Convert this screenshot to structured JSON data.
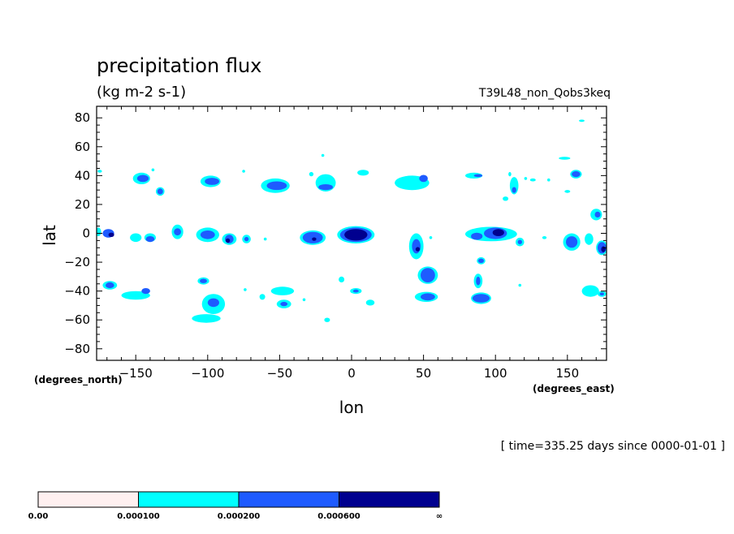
{
  "chart_data": {
    "type": "heatmap",
    "title": "precipitation flux",
    "units": "(kg m-2 s-1)",
    "run_name": "T39L48_non_Qobs3keq",
    "xlabel": "lon",
    "ylabel": "lat",
    "x_units": "(degrees_east)",
    "y_units": "(degrees_north)",
    "time_note": "[ time=335.25 days since 0000-01-01 ]",
    "xlim": [
      -177.19,
      177.19
    ],
    "ylim": [
      -88,
      88
    ],
    "x_ticks": [
      -150,
      -100,
      -50,
      0,
      50,
      100,
      150
    ],
    "x_tick_labels": [
      "−150",
      "−100",
      "−50",
      "0",
      "50",
      "100",
      "150"
    ],
    "y_ticks": [
      -80,
      -60,
      -40,
      -20,
      0,
      20,
      40,
      60,
      80
    ],
    "y_tick_labels": [
      "−80",
      "−60",
      "−40",
      "−20",
      "0",
      "20",
      "40",
      "60",
      "80"
    ],
    "grid": false,
    "levels": [
      0.0,
      0.0001,
      0.0002,
      0.0006
    ],
    "colorbar": {
      "labels": [
        "0.00",
        "0.000100",
        "0.000200",
        "0.000600",
        "∞"
      ],
      "colors": [
        "#fff0f0",
        "#00ffff",
        "#1e5bff",
        "#00008f"
      ]
    },
    "cells": [
      {
        "lon": -169,
        "lat": 0,
        "rx": 4,
        "ry": 3,
        "level": 2
      },
      {
        "lon": -167,
        "lat": -1,
        "rx": 2,
        "ry": 1.5,
        "level": 3
      },
      {
        "lon": -176,
        "lat": 1,
        "rx": 2,
        "ry": 3,
        "level": 1
      },
      {
        "lon": -146,
        "lat": 38,
        "rx": 6,
        "ry": 4,
        "level": 1
      },
      {
        "lon": -145,
        "lat": 38,
        "rx": 4,
        "ry": 2.5,
        "level": 2
      },
      {
        "lon": -133,
        "lat": 29,
        "rx": 3,
        "ry": 3,
        "level": 1
      },
      {
        "lon": -133,
        "lat": 29,
        "rx": 2,
        "ry": 2,
        "level": 2
      },
      {
        "lon": -98,
        "lat": 36,
        "rx": 7,
        "ry": 4,
        "level": 1
      },
      {
        "lon": -97,
        "lat": 36,
        "rx": 5,
        "ry": 2.5,
        "level": 2
      },
      {
        "lon": -53,
        "lat": 33,
        "rx": 10,
        "ry": 5,
        "level": 1
      },
      {
        "lon": -52,
        "lat": 33,
        "rx": 7,
        "ry": 3,
        "level": 2
      },
      {
        "lon": -18,
        "lat": 35,
        "rx": 7,
        "ry": 6,
        "level": 1
      },
      {
        "lon": -18,
        "lat": 32,
        "rx": 5,
        "ry": 2,
        "level": 2
      },
      {
        "lon": 8,
        "lat": 42,
        "rx": 4,
        "ry": 2,
        "level": 1
      },
      {
        "lon": 42,
        "lat": 35,
        "rx": 12,
        "ry": 5,
        "level": 1
      },
      {
        "lon": 50,
        "lat": 38,
        "rx": 3,
        "ry": 2.5,
        "level": 2
      },
      {
        "lon": 85,
        "lat": 40,
        "rx": 6,
        "ry": 2,
        "level": 1
      },
      {
        "lon": 88,
        "lat": 40,
        "rx": 3,
        "ry": 1,
        "level": 2
      },
      {
        "lon": 113,
        "lat": 33,
        "rx": 3,
        "ry": 6,
        "level": 1
      },
      {
        "lon": 113,
        "lat": 30,
        "rx": 1.5,
        "ry": 2,
        "level": 2
      },
      {
        "lon": 156,
        "lat": 41,
        "rx": 4,
        "ry": 3,
        "level": 1
      },
      {
        "lon": 156,
        "lat": 41,
        "rx": 3,
        "ry": 2,
        "level": 2
      },
      {
        "lon": 148,
        "lat": 52,
        "rx": 4,
        "ry": 1,
        "level": 1
      },
      {
        "lon": 170,
        "lat": 13,
        "rx": 4,
        "ry": 4,
        "level": 1
      },
      {
        "lon": 171,
        "lat": 13,
        "rx": 2,
        "ry": 2,
        "level": 2
      },
      {
        "lon": 160,
        "lat": 78,
        "rx": 2,
        "ry": 0.8,
        "level": 1
      },
      {
        "lon": -150,
        "lat": -3,
        "rx": 4,
        "ry": 3,
        "level": 1
      },
      {
        "lon": -140,
        "lat": -3,
        "rx": 4,
        "ry": 3,
        "level": 1
      },
      {
        "lon": -140,
        "lat": -4,
        "rx": 3,
        "ry": 2,
        "level": 2
      },
      {
        "lon": -121,
        "lat": 1,
        "rx": 4,
        "ry": 5,
        "level": 1
      },
      {
        "lon": -121,
        "lat": 1,
        "rx": 2.5,
        "ry": 2.5,
        "level": 2
      },
      {
        "lon": -100,
        "lat": -1,
        "rx": 8,
        "ry": 5,
        "level": 1
      },
      {
        "lon": -100,
        "lat": -1,
        "rx": 5,
        "ry": 3,
        "level": 2
      },
      {
        "lon": -85,
        "lat": -4,
        "rx": 5,
        "ry": 4,
        "level": 1
      },
      {
        "lon": -85,
        "lat": -4,
        "rx": 3,
        "ry": 3,
        "level": 2
      },
      {
        "lon": -86,
        "lat": -5,
        "rx": 1.5,
        "ry": 1.5,
        "level": 3
      },
      {
        "lon": -73,
        "lat": -4,
        "rx": 3,
        "ry": 3,
        "level": 1
      },
      {
        "lon": -73,
        "lat": -4,
        "rx": 1.5,
        "ry": 1.5,
        "level": 2
      },
      {
        "lon": -27,
        "lat": -3,
        "rx": 9,
        "ry": 5,
        "level": 1
      },
      {
        "lon": -27,
        "lat": -3,
        "rx": 7,
        "ry": 4,
        "level": 2
      },
      {
        "lon": -26,
        "lat": -4,
        "rx": 1.5,
        "ry": 1.2,
        "level": 3
      },
      {
        "lon": 3,
        "lat": -1,
        "rx": 13,
        "ry": 6,
        "level": 1
      },
      {
        "lon": 3,
        "lat": -1,
        "rx": 11,
        "ry": 5,
        "level": 2
      },
      {
        "lon": 3,
        "lat": -1,
        "rx": 8,
        "ry": 4,
        "level": 3
      },
      {
        "lon": 45,
        "lat": -9,
        "rx": 5,
        "ry": 9,
        "level": 1
      },
      {
        "lon": 45,
        "lat": -9,
        "rx": 3,
        "ry": 5,
        "level": 2
      },
      {
        "lon": 46,
        "lat": -11,
        "rx": 1.5,
        "ry": 1.5,
        "level": 3
      },
      {
        "lon": 55,
        "lat": -3,
        "rx": 1,
        "ry": 1,
        "level": 1
      },
      {
        "lon": 97,
        "lat": -0.5,
        "rx": 18,
        "ry": 5,
        "level": 1
      },
      {
        "lon": 100,
        "lat": 0,
        "rx": 8,
        "ry": 4,
        "level": 2
      },
      {
        "lon": 87,
        "lat": -2,
        "rx": 4,
        "ry": 2.5,
        "level": 2
      },
      {
        "lon": 102,
        "lat": 0.5,
        "rx": 4,
        "ry": 2.5,
        "level": 3
      },
      {
        "lon": 117,
        "lat": -6,
        "rx": 3,
        "ry": 3,
        "level": 1
      },
      {
        "lon": 117,
        "lat": -6,
        "rx": 1.5,
        "ry": 1.5,
        "level": 2
      },
      {
        "lon": 153,
        "lat": -6,
        "rx": 6,
        "ry": 6,
        "level": 1
      },
      {
        "lon": 153,
        "lat": -6,
        "rx": 4,
        "ry": 4,
        "level": 2
      },
      {
        "lon": 165,
        "lat": -4,
        "rx": 3,
        "ry": 4,
        "level": 1
      },
      {
        "lon": 174,
        "lat": -10,
        "rx": 4,
        "ry": 5,
        "level": 1
      },
      {
        "lon": 174,
        "lat": -10,
        "rx": 3,
        "ry": 4,
        "level": 2
      },
      {
        "lon": 175,
        "lat": -11,
        "rx": 1.5,
        "ry": 2,
        "level": 3
      },
      {
        "lon": 134,
        "lat": -3,
        "rx": 1.5,
        "ry": 1,
        "level": 1
      },
      {
        "lon": 90,
        "lat": -19,
        "rx": 3,
        "ry": 2.5,
        "level": 1
      },
      {
        "lon": 90,
        "lat": -19,
        "rx": 2,
        "ry": 1.5,
        "level": 2
      },
      {
        "lon": 53,
        "lat": -29,
        "rx": 7,
        "ry": 6,
        "level": 1
      },
      {
        "lon": 53,
        "lat": -29,
        "rx": 5,
        "ry": 5,
        "level": 2
      },
      {
        "lon": 52,
        "lat": -44,
        "rx": 8,
        "ry": 3.5,
        "level": 1
      },
      {
        "lon": 53,
        "lat": -44,
        "rx": 5,
        "ry": 2.5,
        "level": 2
      },
      {
        "lon": 88,
        "lat": -33,
        "rx": 3,
        "ry": 5,
        "level": 1
      },
      {
        "lon": 88,
        "lat": -33,
        "rx": 1.5,
        "ry": 3,
        "level": 2
      },
      {
        "lon": 90,
        "lat": -45,
        "rx": 7,
        "ry": 4,
        "level": 1
      },
      {
        "lon": 90,
        "lat": -45,
        "rx": 6,
        "ry": 3,
        "level": 2
      },
      {
        "lon": -168,
        "lat": -36,
        "rx": 5,
        "ry": 3,
        "level": 1
      },
      {
        "lon": -168,
        "lat": -36,
        "rx": 3,
        "ry": 2,
        "level": 2
      },
      {
        "lon": -150,
        "lat": -43,
        "rx": 10,
        "ry": 3,
        "level": 1
      },
      {
        "lon": -143,
        "lat": -40,
        "rx": 3,
        "ry": 2,
        "level": 2
      },
      {
        "lon": -103,
        "lat": -33,
        "rx": 4,
        "ry": 2.5,
        "level": 1
      },
      {
        "lon": -103,
        "lat": -33,
        "rx": 2.5,
        "ry": 1.5,
        "level": 2
      },
      {
        "lon": -96,
        "lat": -49,
        "rx": 8,
        "ry": 7,
        "level": 1
      },
      {
        "lon": -96,
        "lat": -48,
        "rx": 4,
        "ry": 3,
        "level": 2
      },
      {
        "lon": -101,
        "lat": -59,
        "rx": 10,
        "ry": 3,
        "level": 1
      },
      {
        "lon": -48,
        "lat": -40,
        "rx": 8,
        "ry": 3,
        "level": 1
      },
      {
        "lon": -47,
        "lat": -49,
        "rx": 5,
        "ry": 3,
        "level": 1
      },
      {
        "lon": -47,
        "lat": -49,
        "rx": 2.5,
        "ry": 1.5,
        "level": 2
      },
      {
        "lon": -62,
        "lat": -44,
        "rx": 2,
        "ry": 2,
        "level": 1
      },
      {
        "lon": 3,
        "lat": -40,
        "rx": 4,
        "ry": 2,
        "level": 1
      },
      {
        "lon": 3,
        "lat": -40,
        "rx": 2,
        "ry": 1,
        "level": 2
      },
      {
        "lon": 13,
        "lat": -48,
        "rx": 3,
        "ry": 2,
        "level": 1
      },
      {
        "lon": -17,
        "lat": -60,
        "rx": 2,
        "ry": 1.5,
        "level": 1
      },
      {
        "lon": -7,
        "lat": -32,
        "rx": 2,
        "ry": 2,
        "level": 1
      },
      {
        "lon": 117,
        "lat": -36,
        "rx": 1,
        "ry": 1,
        "level": 1
      },
      {
        "lon": 166,
        "lat": -40,
        "rx": 6,
        "ry": 4,
        "level": 1
      },
      {
        "lon": 174,
        "lat": -42,
        "rx": 3,
        "ry": 2,
        "level": 1
      },
      {
        "lon": 174,
        "lat": -42,
        "rx": 1.5,
        "ry": 1,
        "level": 2
      },
      {
        "lon": -138,
        "lat": 44,
        "rx": 1,
        "ry": 1,
        "level": 1
      },
      {
        "lon": -75,
        "lat": 43,
        "rx": 1,
        "ry": 1,
        "level": 1
      },
      {
        "lon": -28,
        "lat": 41,
        "rx": 1.5,
        "ry": 1.5,
        "level": 1
      },
      {
        "lon": -20,
        "lat": 54,
        "rx": 1,
        "ry": 1,
        "level": 1
      },
      {
        "lon": 110,
        "lat": 41,
        "rx": 1,
        "ry": 1.5,
        "level": 1
      },
      {
        "lon": 121,
        "lat": 38,
        "rx": 1,
        "ry": 1,
        "level": 1
      },
      {
        "lon": 126,
        "lat": 37,
        "rx": 2,
        "ry": 1,
        "level": 1
      },
      {
        "lon": 137,
        "lat": 37,
        "rx": 1,
        "ry": 1,
        "level": 1
      },
      {
        "lon": 150,
        "lat": 29,
        "rx": 2,
        "ry": 1,
        "level": 1
      },
      {
        "lon": 107,
        "lat": 24,
        "rx": 2,
        "ry": 1.5,
        "level": 1
      },
      {
        "lon": -175,
        "lat": 43,
        "rx": 1.5,
        "ry": 1,
        "level": 1
      },
      {
        "lon": -74,
        "lat": -39,
        "rx": 1,
        "ry": 1,
        "level": 1
      },
      {
        "lon": -60,
        "lat": -4,
        "rx": 1,
        "ry": 1,
        "level": 1
      },
      {
        "lon": -33,
        "lat": -46,
        "rx": 1,
        "ry": 1,
        "level": 1
      }
    ]
  }
}
